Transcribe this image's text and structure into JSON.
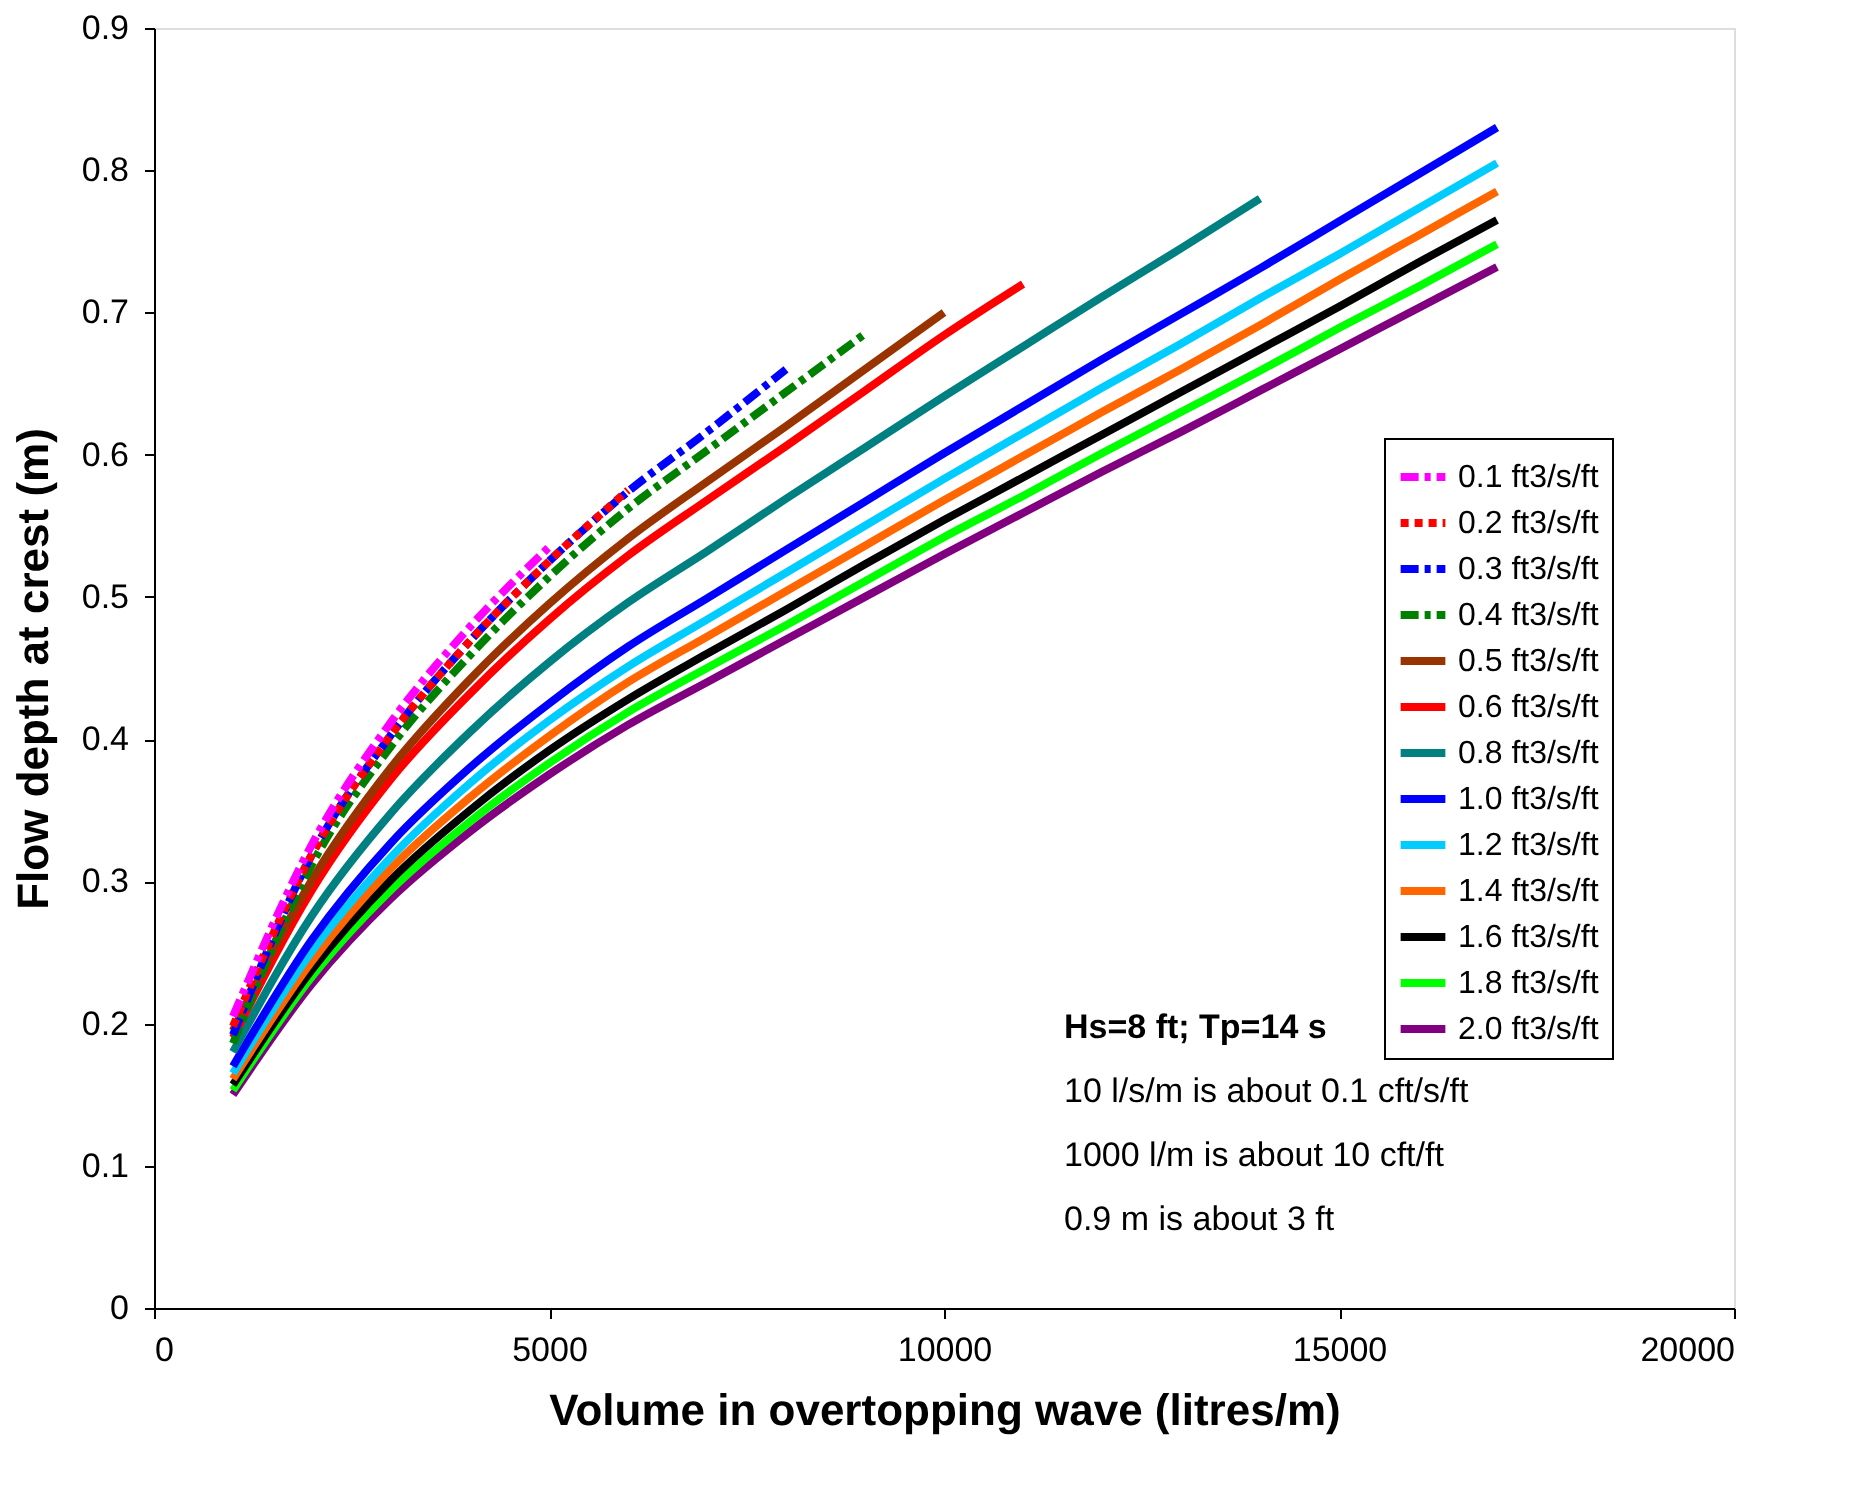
{
  "chart_data": {
    "type": "line",
    "xlabel": "Volume in overtopping wave (litres/m)",
    "ylabel": "Flow depth at crest (m)",
    "xlim": [
      0,
      20000
    ],
    "xticks": [
      0,
      5000,
      10000,
      15000,
      20000
    ],
    "ylim": [
      0,
      0.9
    ],
    "yticks": [
      0,
      0.1,
      0.2,
      0.3,
      0.4,
      0.5,
      0.6,
      0.7,
      0.8,
      0.9
    ],
    "grid": false,
    "legend": "right",
    "marker": "none",
    "series": [
      {
        "name": "0.1 ft3/s/ft",
        "color": "#ff00ff",
        "line_style": "dashed",
        "x": [
          1000,
          2000,
          3000,
          4000,
          5000
        ],
        "values": [
          0.205,
          0.326,
          0.412,
          0.479,
          0.535
        ]
      },
      {
        "name": "0.2 ft3/s/ft",
        "color": "#ff0000",
        "line_style": "dotted",
        "x": [
          1000,
          2000,
          3000,
          4000,
          5000,
          6000
        ],
        "values": [
          0.198,
          0.319,
          0.403,
          0.469,
          0.525,
          0.575
        ]
      },
      {
        "name": "0.3 ft3/s/ft",
        "color": "#0000ff",
        "line_style": "dashed",
        "x": [
          1000,
          2000,
          3000,
          4000,
          5000,
          6000,
          7000,
          8000
        ],
        "values": [
          0.192,
          0.319,
          0.403,
          0.469,
          0.525,
          0.574,
          0.616,
          0.66
        ]
      },
      {
        "name": "0.4 ft3/s/ft",
        "color": "#008000",
        "line_style": "dashed",
        "x": [
          1000,
          2000,
          3000,
          4000,
          5000,
          6000,
          7000,
          8000,
          9000
        ],
        "values": [
          0.186,
          0.312,
          0.395,
          0.459,
          0.514,
          0.562,
          0.603,
          0.644,
          0.685
        ]
      },
      {
        "name": "0.5 ft3/s/ft",
        "color": "#993300",
        "line_style": "solid",
        "x": [
          1000,
          2000,
          3000,
          4000,
          5000,
          6000,
          7000,
          8000,
          9000,
          10000
        ],
        "values": [
          0.195,
          0.301,
          0.38,
          0.442,
          0.495,
          0.541,
          0.581,
          0.62,
          0.66,
          0.7
        ]
      },
      {
        "name": "0.6 ft3/s/ft",
        "color": "#ff0000",
        "line_style": "solid",
        "x": [
          1000,
          2000,
          3000,
          4000,
          5000,
          6000,
          7000,
          8000,
          9000,
          10000,
          11000
        ],
        "values": [
          0.19,
          0.294,
          0.372,
          0.432,
          0.484,
          0.529,
          0.568,
          0.606,
          0.645,
          0.684,
          0.72
        ]
      },
      {
        "name": "0.8 ft3/s/ft",
        "color": "#008080",
        "line_style": "solid",
        "x": [
          1000,
          2000,
          3000,
          4000,
          5000,
          6000,
          7000,
          8000,
          9000,
          10000,
          11000,
          12000,
          13000,
          14000
        ],
        "values": [
          0.18,
          0.276,
          0.348,
          0.405,
          0.454,
          0.496,
          0.532,
          0.569,
          0.605,
          0.641,
          0.676,
          0.711,
          0.745,
          0.78
        ]
      },
      {
        "name": "1.0 ft3/s/ft",
        "color": "#0000ff",
        "line_style": "solid",
        "x": [
          1000,
          2000,
          3000,
          4000,
          5000,
          6000,
          7000,
          8000,
          9000,
          10000,
          11000,
          12000,
          13000,
          14000,
          15000,
          16000,
          17000
        ],
        "values": [
          0.17,
          0.259,
          0.327,
          0.38,
          0.425,
          0.465,
          0.499,
          0.533,
          0.567,
          0.601,
          0.634,
          0.667,
          0.699,
          0.731,
          0.764,
          0.797,
          0.83
        ]
      },
      {
        "name": "1.2 ft3/s/ft",
        "color": "#00ccff",
        "line_style": "solid",
        "x": [
          1000,
          2000,
          3000,
          4000,
          5000,
          6000,
          7000,
          8000,
          9000,
          10000,
          11000,
          12000,
          13000,
          14000,
          15000,
          16000,
          17000
        ],
        "values": [
          0.165,
          0.251,
          0.317,
          0.369,
          0.413,
          0.451,
          0.484,
          0.517,
          0.55,
          0.583,
          0.615,
          0.647,
          0.678,
          0.71,
          0.741,
          0.773,
          0.805
        ]
      },
      {
        "name": "1.4 ft3/s/ft",
        "color": "#ff6600",
        "line_style": "solid",
        "x": [
          1000,
          2000,
          3000,
          4000,
          5000,
          6000,
          7000,
          8000,
          9000,
          10000,
          11000,
          12000,
          13000,
          14000,
          15000,
          16000,
          17000
        ],
        "values": [
          0.161,
          0.244,
          0.309,
          0.359,
          0.402,
          0.44,
          0.472,
          0.504,
          0.536,
          0.568,
          0.599,
          0.63,
          0.66,
          0.691,
          0.723,
          0.754,
          0.785
        ]
      },
      {
        "name": "1.6 ft3/s/ft",
        "color": "#000000",
        "line_style": "solid",
        "x": [
          1000,
          2000,
          3000,
          4000,
          5000,
          6000,
          7000,
          8000,
          9000,
          10000,
          11000,
          12000,
          13000,
          14000,
          15000,
          16000,
          17000
        ],
        "values": [
          0.157,
          0.238,
          0.301,
          0.35,
          0.392,
          0.428,
          0.46,
          0.491,
          0.523,
          0.554,
          0.584,
          0.614,
          0.644,
          0.674,
          0.704,
          0.735,
          0.765
        ]
      },
      {
        "name": "1.8 ft3/s/ft",
        "color": "#00ff00",
        "line_style": "solid",
        "x": [
          1000,
          2000,
          3000,
          4000,
          5000,
          6000,
          7000,
          8000,
          9000,
          10000,
          11000,
          12000,
          13000,
          14000,
          15000,
          16000,
          17000
        ],
        "values": [
          0.153,
          0.233,
          0.294,
          0.342,
          0.383,
          0.419,
          0.45,
          0.48,
          0.511,
          0.542,
          0.571,
          0.601,
          0.63,
          0.659,
          0.689,
          0.718,
          0.748
        ]
      },
      {
        "name": "2.0 ft3/s/ft",
        "color": "#800080",
        "line_style": "solid",
        "x": [
          1000,
          2000,
          3000,
          4000,
          5000,
          6000,
          7000,
          8000,
          9000,
          10000,
          11000,
          12000,
          13000,
          14000,
          15000,
          16000,
          17000
        ],
        "values": [
          0.15,
          0.228,
          0.288,
          0.335,
          0.375,
          0.41,
          0.44,
          0.47,
          0.5,
          0.53,
          0.559,
          0.588,
          0.616,
          0.645,
          0.674,
          0.703,
          0.732
        ]
      }
    ],
    "annotations": [
      "Hs=8 ft; Tp=14 s",
      "10 l/s/m is about 0.1 cft/s/ft",
      "1000 l/m is about 10 cft/ft",
      "0.9 m is about 3 ft"
    ]
  }
}
